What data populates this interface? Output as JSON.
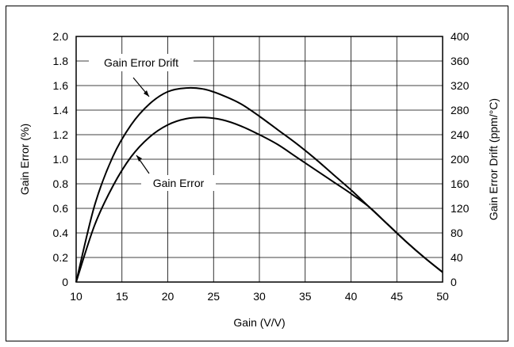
{
  "chart_data": {
    "type": "line",
    "title": "",
    "xlabel": "Gain (V/V)",
    "ylabel_left": "Gain Error (%)",
    "ylabel_right": "Gain Error Drift (ppm/°C)",
    "xlim": [
      10,
      50
    ],
    "ylim_left": [
      0,
      2.0
    ],
    "ylim_right": [
      0,
      400
    ],
    "xticks": [
      "10",
      "15",
      "20",
      "25",
      "30",
      "35",
      "40",
      "45",
      "50"
    ],
    "yticks_left": [
      "0",
      "0.2",
      "0.4",
      "0.6",
      "0.8",
      "1.0",
      "1.2",
      "1.4",
      "1.6",
      "1.8",
      "2.0"
    ],
    "yticks_right": [
      "0",
      "40",
      "80",
      "120",
      "160",
      "200",
      "240",
      "280",
      "320",
      "360",
      "400"
    ],
    "grid": true,
    "series": [
      {
        "name": "Gain Error Drift",
        "axis": "right",
        "x": [
          10,
          12,
          14,
          16,
          18,
          20,
          22,
          24,
          26,
          28,
          30,
          32,
          34,
          36,
          38,
          40,
          42,
          44,
          46,
          48,
          50
        ],
        "y": [
          0,
          124,
          204,
          256,
          290,
          310,
          316,
          314,
          304,
          290,
          270,
          248,
          226,
          202,
          176,
          150,
          122,
          94,
          66,
          40,
          16
        ]
      },
      {
        "name": "Gain Error",
        "axis": "left",
        "x": [
          10,
          12,
          14,
          16,
          18,
          20,
          22,
          24,
          26,
          28,
          30,
          32,
          34,
          36,
          38,
          40,
          42,
          44,
          46,
          48,
          50
        ],
        "y": [
          0,
          0.46,
          0.78,
          1.02,
          1.18,
          1.28,
          1.33,
          1.34,
          1.32,
          1.27,
          1.2,
          1.12,
          1.02,
          0.92,
          0.82,
          0.72,
          0.61,
          0.47,
          0.33,
          0.2,
          0.08
        ]
      }
    ],
    "annotations": [
      {
        "text": "Gain Error Drift",
        "series": "Gain Error Drift"
      },
      {
        "text": "Gain Error",
        "series": "Gain Error"
      }
    ]
  }
}
